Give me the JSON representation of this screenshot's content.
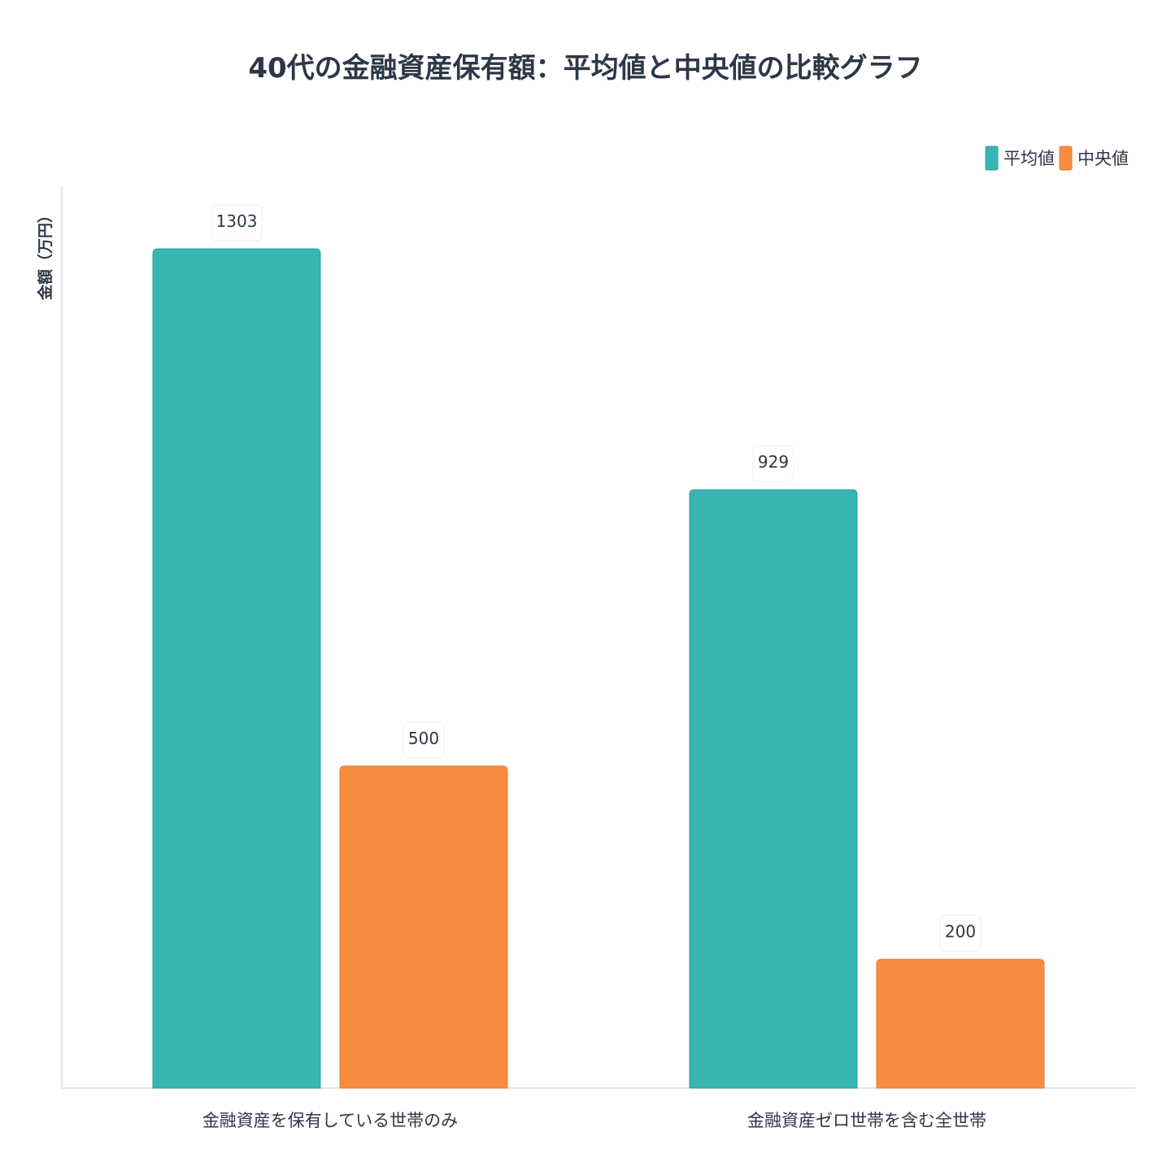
{
  "chart_data": {
    "type": "bar",
    "title": "40代の金融資産保有額：平均値と中央値の比較グラフ",
    "xlabel": "",
    "ylabel": "金額（万円）",
    "categories": [
      "金融資産を保有している世帯のみ",
      "金融資産ゼロ世帯を含む全世帯"
    ],
    "series": [
      {
        "name": "平均値",
        "values": [
          1303,
          929
        ],
        "color": "#36b5b3",
        "border": "#2aa19f"
      },
      {
        "name": "中央値",
        "values": [
          500,
          200
        ],
        "color": "#f88b42",
        "border": "#f07a2c"
      }
    ],
    "ylim": [
      0,
      1400
    ],
    "grid": false,
    "legend": "top-right",
    "axis_color": "#d9dde3"
  }
}
